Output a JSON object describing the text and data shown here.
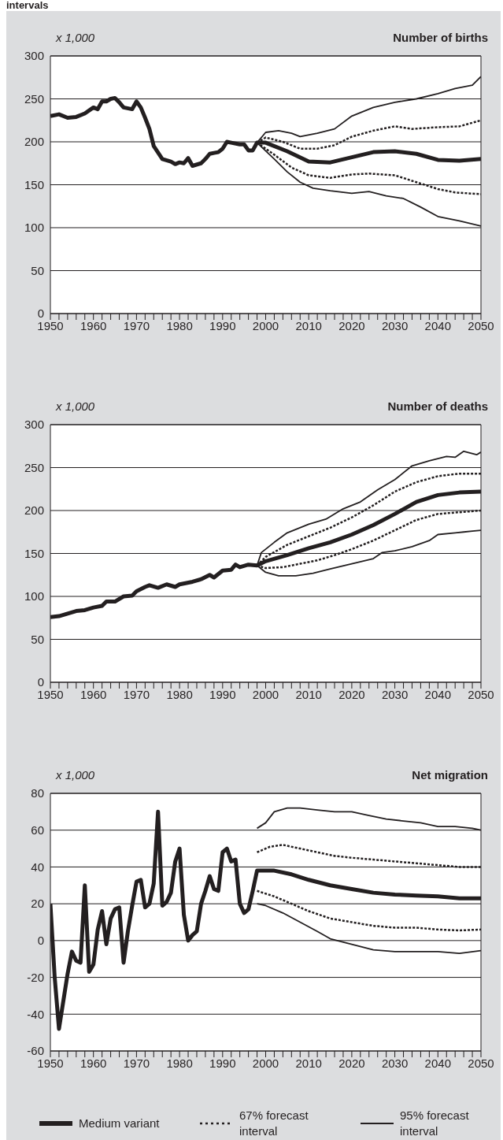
{
  "chart_data": [
    {
      "type": "line",
      "title": "Number of births",
      "ylabel": "x 1,000",
      "annotations": [
        "intervals"
      ],
      "grid": "y",
      "legend": false,
      "marker": "none",
      "xlim": [
        1950,
        2050
      ],
      "xticks": [
        1950,
        {
          "value": 1952,
          "label": null
        },
        {
          "value": 1954,
          "label": null
        },
        {
          "value": 1956,
          "label": null
        },
        {
          "value": 1958,
          "label": null
        },
        1960,
        {
          "value": 1962,
          "label": null
        },
        {
          "value": 1964,
          "label": null
        },
        {
          "value": 1966,
          "label": null
        },
        {
          "value": 1968,
          "label": null
        },
        1970,
        {
          "value": 1972,
          "label": null
        },
        {
          "value": 1974,
          "label": null
        },
        {
          "value": 1976,
          "label": null
        },
        {
          "value": 1978,
          "label": null
        },
        1980,
        {
          "value": 1982,
          "label": null
        },
        {
          "value": 1984,
          "label": null
        },
        {
          "value": 1986,
          "label": null
        },
        {
          "value": 1988,
          "label": null
        },
        1990,
        {
          "value": 1992,
          "label": null
        },
        {
          "value": 1994,
          "label": null
        },
        {
          "value": 1996,
          "label": null
        },
        {
          "value": 1998,
          "label": null
        },
        2000,
        {
          "value": 2002,
          "label": null
        },
        {
          "value": 2004,
          "label": null
        },
        {
          "value": 2006,
          "label": null
        },
        {
          "value": 2008,
          "label": null
        },
        2010,
        {
          "value": 2012,
          "label": null
        },
        {
          "value": 2014,
          "label": null
        },
        {
          "value": 2016,
          "label": null
        },
        {
          "value": 2018,
          "label": null
        },
        2020,
        {
          "value": 2022,
          "label": null
        },
        {
          "value": 2024,
          "label": null
        },
        {
          "value": 2026,
          "label": null
        },
        {
          "value": 2028,
          "label": null
        },
        2030,
        {
          "value": 2032,
          "label": null
        },
        {
          "value": 2034,
          "label": null
        },
        {
          "value": 2036,
          "label": null
        },
        {
          "value": 2038,
          "label": null
        },
        2040,
        {
          "value": 2042,
          "label": null
        },
        {
          "value": 2044,
          "label": null
        },
        {
          "value": 2046,
          "label": null
        },
        {
          "value": 2048,
          "label": null
        },
        2050
      ],
      "ylim": [
        0,
        300
      ],
      "yticks": [
        0,
        50,
        100,
        150,
        200,
        250,
        300
      ],
      "series": [
        {
          "color": "#231f20",
          "line_style": "solid",
          "x": [
            1950,
            1952,
            1954,
            1956,
            1958,
            1960,
            1961,
            1962,
            1963,
            1964,
            1965,
            1966,
            1967,
            1969,
            1970,
            1971,
            1972,
            1973,
            1974,
            1976,
            1978,
            1979,
            1980,
            1981,
            1982,
            1983,
            1985,
            1986,
            1987,
            1988,
            1989,
            1990,
            1991,
            1992,
            1994,
            1995,
            1996,
            1997,
            1998,
            2000,
            2005,
            2010,
            2015,
            2020,
            2025,
            2030,
            2035,
            2040,
            2045,
            2050
          ],
          "values": [
            230,
            232,
            228,
            229,
            233,
            240,
            238,
            247,
            247,
            250,
            251,
            246,
            240,
            238,
            247,
            240,
            228,
            215,
            195,
            180,
            177,
            174,
            176,
            175,
            181,
            172,
            175,
            180,
            186,
            187,
            188,
            192,
            200,
            199,
            197,
            197,
            190,
            190,
            199,
            199,
            189,
            177,
            176,
            182,
            188,
            189,
            186,
            179,
            178,
            180
          ]
        },
        {
          "color": "#231f20",
          "line_style": "dotted",
          "x": [
            1998,
            2000,
            2004,
            2008,
            2012,
            2016,
            2020,
            2025,
            2030,
            2034,
            2040,
            2045,
            2050
          ],
          "values": [
            199,
            205,
            200,
            192,
            192,
            196,
            206,
            213,
            218,
            215,
            217,
            218,
            225
          ]
        },
        {
          "color": "#231f20",
          "line_style": "dotted",
          "x": [
            1998,
            2002,
            2006,
            2010,
            2015,
            2020,
            2024,
            2030,
            2035,
            2040,
            2044,
            2050
          ],
          "values": [
            199,
            185,
            170,
            161,
            158,
            162,
            163,
            161,
            153,
            145,
            141,
            139
          ]
        },
        {
          "color": "#231f20",
          "line_style": "solid",
          "x": [
            1998,
            2000,
            2003,
            2006,
            2008,
            2012,
            2016,
            2020,
            2025,
            2030,
            2035,
            2040,
            2044,
            2048,
            2050
          ],
          "values": [
            199,
            211,
            213,
            210,
            206,
            210,
            215,
            230,
            240,
            246,
            250,
            256,
            262,
            266,
            276
          ]
        },
        {
          "color": "#231f20",
          "line_style": "solid",
          "x": [
            1998,
            2002,
            2005,
            2008,
            2011,
            2015,
            2020,
            2024,
            2028,
            2032,
            2036,
            2040,
            2045,
            2050
          ],
          "values": [
            199,
            180,
            165,
            153,
            146,
            143,
            140,
            142,
            137,
            134,
            124,
            113,
            108,
            102
          ]
        }
      ]
    },
    {
      "type": "line",
      "title": "Number of deaths",
      "ylabel": "x 1,000",
      "grid": "y",
      "legend": false,
      "marker": "none",
      "xlim": [
        1950,
        2050
      ],
      "xticks": [
        1950,
        {
          "value": 1952,
          "label": null
        },
        {
          "value": 1954,
          "label": null
        },
        {
          "value": 1956,
          "label": null
        },
        {
          "value": 1958,
          "label": null
        },
        1960,
        {
          "value": 1962,
          "label": null
        },
        {
          "value": 1964,
          "label": null
        },
        {
          "value": 1966,
          "label": null
        },
        {
          "value": 1968,
          "label": null
        },
        1970,
        {
          "value": 1972,
          "label": null
        },
        {
          "value": 1974,
          "label": null
        },
        {
          "value": 1976,
          "label": null
        },
        {
          "value": 1978,
          "label": null
        },
        1980,
        {
          "value": 1982,
          "label": null
        },
        {
          "value": 1984,
          "label": null
        },
        {
          "value": 1986,
          "label": null
        },
        {
          "value": 1988,
          "label": null
        },
        1990,
        {
          "value": 1992,
          "label": null
        },
        {
          "value": 1994,
          "label": null
        },
        {
          "value": 1996,
          "label": null
        },
        {
          "value": 1998,
          "label": null
        },
        2000,
        {
          "value": 2002,
          "label": null
        },
        {
          "value": 2004,
          "label": null
        },
        {
          "value": 2006,
          "label": null
        },
        {
          "value": 2008,
          "label": null
        },
        2010,
        {
          "value": 2012,
          "label": null
        },
        {
          "value": 2014,
          "label": null
        },
        {
          "value": 2016,
          "label": null
        },
        {
          "value": 2018,
          "label": null
        },
        2020,
        {
          "value": 2022,
          "label": null
        },
        {
          "value": 2024,
          "label": null
        },
        {
          "value": 2026,
          "label": null
        },
        {
          "value": 2028,
          "label": null
        },
        2030,
        {
          "value": 2032,
          "label": null
        },
        {
          "value": 2034,
          "label": null
        },
        {
          "value": 2036,
          "label": null
        },
        {
          "value": 2038,
          "label": null
        },
        2040,
        {
          "value": 2042,
          "label": null
        },
        {
          "value": 2044,
          "label": null
        },
        {
          "value": 2046,
          "label": null
        },
        {
          "value": 2048,
          "label": null
        },
        2050
      ],
      "ylim": [
        0,
        300
      ],
      "yticks": [
        0,
        50,
        100,
        150,
        200,
        250,
        300
      ],
      "series": [
        {
          "color": "#231f20",
          "line_style": "solid",
          "x": [
            1950,
            1952,
            1954,
            1956,
            1958,
            1960,
            1962,
            1963,
            1965,
            1967,
            1969,
            1970,
            1972,
            1973,
            1975,
            1977,
            1979,
            1980,
            1983,
            1985,
            1987,
            1988,
            1990,
            1992,
            1993,
            1994,
            1996,
            1998,
            2000,
            2005,
            2010,
            2015,
            2020,
            2025,
            2030,
            2035,
            2040,
            2045,
            2050
          ],
          "values": [
            76,
            77,
            80,
            83,
            84,
            87,
            89,
            94,
            94,
            100,
            101,
            106,
            111,
            113,
            110,
            114,
            111,
            114,
            117,
            120,
            125,
            122,
            130,
            131,
            137,
            134,
            137,
            136,
            141,
            148,
            156,
            163,
            172,
            183,
            196,
            210,
            218,
            221,
            222
          ]
        },
        {
          "color": "#231f20",
          "line_style": "dotted",
          "x": [
            1998,
            2000,
            2005,
            2010,
            2015,
            2020,
            2025,
            2030,
            2035,
            2040,
            2045,
            2050
          ],
          "values": [
            136,
            146,
            160,
            170,
            180,
            192,
            206,
            222,
            233,
            240,
            243,
            243
          ]
        },
        {
          "color": "#231f20",
          "line_style": "dotted",
          "x": [
            1998,
            2000,
            2004,
            2008,
            2012,
            2016,
            2020,
            2025,
            2030,
            2035,
            2040,
            2045,
            2050
          ],
          "values": [
            136,
            133,
            134,
            138,
            142,
            148,
            155,
            165,
            177,
            189,
            196,
            198,
            200
          ]
        },
        {
          "color": "#231f20",
          "line_style": "solid",
          "x": [
            1998,
            1999,
            2002,
            2005,
            2010,
            2014,
            2018,
            2022,
            2026,
            2030,
            2034,
            2038,
            2042,
            2044,
            2046,
            2049,
            2050
          ],
          "values": [
            136,
            151,
            163,
            174,
            184,
            190,
            202,
            210,
            224,
            236,
            252,
            258,
            263,
            262,
            269,
            265,
            268
          ]
        },
        {
          "color": "#231f20",
          "line_style": "solid",
          "x": [
            1998,
            2000,
            2003,
            2007,
            2011,
            2015,
            2020,
            2025,
            2027,
            2030,
            2034,
            2038,
            2040,
            2044,
            2046,
            2048,
            2050
          ],
          "values": [
            136,
            128,
            124,
            124,
            127,
            132,
            138,
            144,
            151,
            153,
            158,
            165,
            172,
            174,
            175,
            176,
            177
          ]
        }
      ]
    },
    {
      "type": "line",
      "title": "Net migration",
      "ylabel": "x 1,000",
      "grid": "y",
      "legend": "bottom",
      "marker": "none",
      "xlim": [
        1950,
        2050
      ],
      "xticks": [
        1950,
        {
          "value": 1952,
          "label": null
        },
        {
          "value": 1954,
          "label": null
        },
        {
          "value": 1956,
          "label": null
        },
        {
          "value": 1958,
          "label": null
        },
        1960,
        {
          "value": 1962,
          "label": null
        },
        {
          "value": 1964,
          "label": null
        },
        {
          "value": 1966,
          "label": null
        },
        {
          "value": 1968,
          "label": null
        },
        1970,
        {
          "value": 1972,
          "label": null
        },
        {
          "value": 1974,
          "label": null
        },
        {
          "value": 1976,
          "label": null
        },
        {
          "value": 1978,
          "label": null
        },
        1980,
        {
          "value": 1982,
          "label": null
        },
        {
          "value": 1984,
          "label": null
        },
        {
          "value": 1986,
          "label": null
        },
        {
          "value": 1988,
          "label": null
        },
        1990,
        {
          "value": 1992,
          "label": null
        },
        {
          "value": 1994,
          "label": null
        },
        {
          "value": 1996,
          "label": null
        },
        {
          "value": 1998,
          "label": null
        },
        2000,
        {
          "value": 2002,
          "label": null
        },
        {
          "value": 2004,
          "label": null
        },
        {
          "value": 2006,
          "label": null
        },
        {
          "value": 2008,
          "label": null
        },
        2010,
        {
          "value": 2012,
          "label": null
        },
        {
          "value": 2014,
          "label": null
        },
        {
          "value": 2016,
          "label": null
        },
        {
          "value": 2018,
          "label": null
        },
        2020,
        {
          "value": 2022,
          "label": null
        },
        {
          "value": 2024,
          "label": null
        },
        {
          "value": 2026,
          "label": null
        },
        {
          "value": 2028,
          "label": null
        },
        2030,
        {
          "value": 2032,
          "label": null
        },
        {
          "value": 2034,
          "label": null
        },
        {
          "value": 2036,
          "label": null
        },
        {
          "value": 2038,
          "label": null
        },
        2040,
        {
          "value": 2042,
          "label": null
        },
        {
          "value": 2044,
          "label": null
        },
        {
          "value": 2046,
          "label": null
        },
        {
          "value": 2048,
          "label": null
        },
        2050
      ],
      "ylim": [
        -60,
        80
      ],
      "yticks": [
        -60,
        -40,
        -20,
        0,
        20,
        40,
        60,
        80
      ],
      "series": [
        {
          "name": "Medium variant",
          "color": "#231f20",
          "line_style": "solid",
          "x": [
            1950,
            1951,
            1952,
            1953,
            1954,
            1955,
            1956,
            1957,
            1958,
            1959,
            1960,
            1961,
            1962,
            1963,
            1964,
            1965,
            1966,
            1967,
            1968,
            1969,
            1970,
            1971,
            1972,
            1973,
            1974,
            1975,
            1976,
            1977,
            1978,
            1979,
            1980,
            1981,
            1982,
            1983,
            1984,
            1985,
            1986,
            1987,
            1988,
            1989,
            1990,
            1991,
            1992,
            1993,
            1994,
            1995,
            1996,
            1997,
            1998,
            2002,
            2006,
            2010,
            2015,
            2020,
            2025,
            2030,
            2035,
            2040,
            2045,
            2050
          ],
          "values": [
            20,
            -20,
            -48,
            -33,
            -18,
            -6,
            -11,
            -12,
            30,
            -17,
            -13,
            6,
            16,
            -2,
            12,
            17,
            18,
            -12,
            5,
            19,
            32,
            33,
            18,
            20,
            31,
            70,
            19,
            21,
            26,
            43,
            50,
            14,
            0,
            3,
            5,
            20,
            27,
            35,
            28,
            27,
            48,
            50,
            43,
            44,
            20,
            15,
            17,
            27,
            38,
            38,
            36,
            33,
            30,
            28,
            26,
            25,
            24.5,
            24,
            23,
            23
          ]
        },
        {
          "name": "67% forecast interval",
          "color": "#231f20",
          "line_style": "dotted",
          "x": [
            1998,
            2001,
            2004,
            2008,
            2012,
            2016,
            2020,
            2025,
            2030,
            2035,
            2040,
            2045,
            2050
          ],
          "values": [
            48,
            51,
            52,
            50,
            48,
            46,
            45,
            44,
            43,
            42,
            41,
            40,
            40
          ]
        },
        {
          "color": "#231f20",
          "line_style": "dotted",
          "x": [
            1998,
            2002,
            2006,
            2010,
            2015,
            2020,
            2025,
            2030,
            2035,
            2040,
            2045,
            2050
          ],
          "values": [
            27,
            24,
            20,
            16,
            12,
            10,
            8,
            7,
            7,
            6,
            5.5,
            6
          ]
        },
        {
          "name": "95% forecast interval",
          "color": "#231f20",
          "line_style": "solid",
          "x": [
            1998,
            2000,
            2002,
            2005,
            2008,
            2012,
            2016,
            2020,
            2024,
            2028,
            2032,
            2036,
            2040,
            2044,
            2048,
            2050
          ],
          "values": [
            61,
            64,
            70,
            72,
            72,
            71,
            70,
            70,
            68,
            66,
            65,
            64,
            62,
            62,
            61,
            60
          ]
        },
        {
          "color": "#231f20",
          "line_style": "solid",
          "x": [
            1998,
            2000,
            2004,
            2008,
            2012,
            2015,
            2020,
            2025,
            2030,
            2035,
            2040,
            2045,
            2050
          ],
          "values": [
            20,
            19,
            15,
            10,
            5,
            1,
            -2,
            -5,
            -6,
            -6,
            -6,
            -7,
            -5.5
          ]
        }
      ]
    }
  ]
}
